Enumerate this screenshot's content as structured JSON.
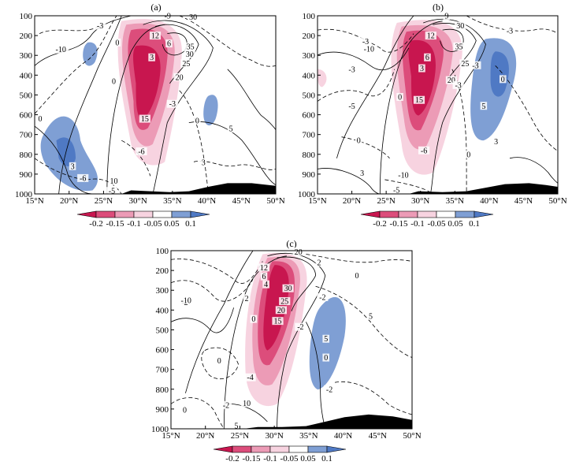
{
  "colors": {
    "shade_neg_strong": "#c8164f",
    "shade_neg_mid": "#dc4d7b",
    "shade_neg_weak": "#ec9bb6",
    "shade_neg_faint": "#f7d3e0",
    "shade_pos": "#7f9fd4",
    "shade_pos_strong": "#4f79c4",
    "terrain": "#000000",
    "contour": "#000000"
  },
  "chart_data": [
    {
      "type": "contour",
      "panel_label": "(a)",
      "xlabel": "",
      "ylabel": "",
      "x_ticks": [
        "15°N",
        "20°N",
        "25°N",
        "30°N",
        "35°N",
        "40°N",
        "45°N",
        "50°N"
      ],
      "y_ticks": [
        "100",
        "200",
        "300",
        "400",
        "500",
        "600",
        "700",
        "800",
        "900",
        "1000"
      ],
      "xlim": [
        15,
        50
      ],
      "ylim": [
        1000,
        100
      ],
      "colorbar": [
        "-0.2",
        "-0.15",
        "-0.1",
        "-0.05",
        "0.05",
        "0.1"
      ],
      "contour_labels": [
        {
          "text": "-3",
          "lat": 24.5,
          "p": 150
        },
        {
          "text": "-10",
          "lat": 18.8,
          "p": 270
        },
        {
          "text": "0",
          "lat": 27.0,
          "p": 235
        },
        {
          "text": "0",
          "lat": 26.5,
          "p": 430
        },
        {
          "text": "-9",
          "lat": 34.3,
          "p": 100
        },
        {
          "text": "30",
          "lat": 38.0,
          "p": 105
        },
        {
          "text": "12",
          "lat": 32.5,
          "p": 200
        },
        {
          "text": "6",
          "lat": 34.5,
          "p": 240
        },
        {
          "text": "35",
          "lat": 37.6,
          "p": 255
        },
        {
          "text": "30",
          "lat": 37.5,
          "p": 293
        },
        {
          "text": "3",
          "lat": 32.0,
          "p": 310
        },
        {
          "text": "25",
          "lat": 37.0,
          "p": 340
        },
        {
          "text": "20",
          "lat": 36.0,
          "p": 410
        },
        {
          "text": "-3",
          "lat": 35.0,
          "p": 545
        },
        {
          "text": "15",
          "lat": 31.0,
          "p": 620
        },
        {
          "text": "0",
          "lat": 38.6,
          "p": 630
        },
        {
          "text": "5",
          "lat": 43.5,
          "p": 670
        },
        {
          "text": "-6",
          "lat": 30.5,
          "p": 785
        },
        {
          "text": "3",
          "lat": 39.5,
          "p": 840
        },
        {
          "text": "0",
          "lat": 15.8,
          "p": 620
        },
        {
          "text": "3",
          "lat": 20.5,
          "p": 860
        },
        {
          "text": "-6",
          "lat": 22.0,
          "p": 920
        },
        {
          "text": "10",
          "lat": 26.5,
          "p": 935
        },
        {
          "text": "-5",
          "lat": 26.2,
          "p": 985
        }
      ]
    },
    {
      "type": "contour",
      "panel_label": "(b)",
      "xlabel": "",
      "ylabel": "",
      "x_ticks": [
        "15°N",
        "20°N",
        "25°N",
        "30°N",
        "35°N",
        "40°N",
        "45°N",
        "50°N"
      ],
      "y_ticks": [
        "100",
        "200",
        "300",
        "400",
        "500",
        "600",
        "700",
        "800",
        "900",
        "1000"
      ],
      "xlim": [
        15,
        50
      ],
      "ylim": [
        1000,
        100
      ],
      "colorbar": [
        "-0.2",
        "-0.15",
        "-0.1",
        "-0.05",
        "0.05",
        "0.1"
      ],
      "contour_labels": [
        {
          "text": "-3",
          "lat": 22.0,
          "p": 230
        },
        {
          "text": "-10",
          "lat": 22.5,
          "p": 268
        },
        {
          "text": "-3",
          "lat": 43.0,
          "p": 175
        },
        {
          "text": "-3",
          "lat": 20.0,
          "p": 370
        },
        {
          "text": "9",
          "lat": 33.8,
          "p": 100
        },
        {
          "text": "12",
          "lat": 31.5,
          "p": 200
        },
        {
          "text": "30",
          "lat": 35.8,
          "p": 150
        },
        {
          "text": "6",
          "lat": 31.0,
          "p": 310
        },
        {
          "text": "35",
          "lat": 35.6,
          "p": 255
        },
        {
          "text": "3",
          "lat": 30.2,
          "p": 365
        },
        {
          "text": "25",
          "lat": 36.5,
          "p": 340
        },
        {
          "text": "20",
          "lat": 34.5,
          "p": 425
        },
        {
          "text": "-3",
          "lat": 38.0,
          "p": 350
        },
        {
          "text": "-3",
          "lat": 35.5,
          "p": 450
        },
        {
          "text": "15",
          "lat": 29.8,
          "p": 525
        },
        {
          "text": "0",
          "lat": 27.0,
          "p": 510
        },
        {
          "text": "0",
          "lat": 42.0,
          "p": 420
        },
        {
          "text": "-5",
          "lat": 20.0,
          "p": 555
        },
        {
          "text": "5",
          "lat": 39.2,
          "p": 555
        },
        {
          "text": "0",
          "lat": 21.0,
          "p": 730
        },
        {
          "text": "3",
          "lat": 41.0,
          "p": 735
        },
        {
          "text": "-6",
          "lat": 30.5,
          "p": 780
        },
        {
          "text": "0",
          "lat": 37.0,
          "p": 800
        },
        {
          "text": "3",
          "lat": 21.5,
          "p": 895
        },
        {
          "text": "-10",
          "lat": 27.5,
          "p": 905
        },
        {
          "text": "-5",
          "lat": 26.5,
          "p": 980
        }
      ]
    },
    {
      "type": "contour",
      "panel_label": "(c)",
      "xlabel": "",
      "ylabel": "",
      "x_ticks": [
        "15°N",
        "20°N",
        "25°N",
        "30°N",
        "35°N",
        "40°N",
        "45°N",
        "50°N"
      ],
      "y_ticks": [
        "100",
        "200",
        "300",
        "400",
        "500",
        "600",
        "700",
        "800",
        "900",
        "1000"
      ],
      "xlim": [
        15,
        50
      ],
      "ylim": [
        1000,
        100
      ],
      "colorbar": [
        "-0.2",
        "-0.15",
        "-0.1",
        "-0.05",
        "0.05",
        "0.1"
      ],
      "contour_labels": [
        {
          "text": "-2",
          "lat": 17.0,
          "p": 360
        },
        {
          "text": "-10",
          "lat": 17.2,
          "p": 350
        },
        {
          "text": "20",
          "lat": 33.5,
          "p": 105
        },
        {
          "text": "2",
          "lat": 36.5,
          "p": 160
        },
        {
          "text": "0",
          "lat": 42.0,
          "p": 225
        },
        {
          "text": "12",
          "lat": 28.5,
          "p": 185
        },
        {
          "text": "6",
          "lat": 28.5,
          "p": 230
        },
        {
          "text": "4",
          "lat": 28.8,
          "p": 270
        },
        {
          "text": "30",
          "lat": 32.0,
          "p": 290
        },
        {
          "text": "2",
          "lat": 26.0,
          "p": 340
        },
        {
          "text": "25",
          "lat": 31.5,
          "p": 355
        },
        {
          "text": "20",
          "lat": 31.0,
          "p": 400
        },
        {
          "text": "-2",
          "lat": 37.0,
          "p": 335
        },
        {
          "text": "0",
          "lat": 27.0,
          "p": 445
        },
        {
          "text": "15",
          "lat": 30.5,
          "p": 455
        },
        {
          "text": "-2",
          "lat": 33.8,
          "p": 485
        },
        {
          "text": "5",
          "lat": 37.5,
          "p": 545
        },
        {
          "text": "5",
          "lat": 44.0,
          "p": 430
        },
        {
          "text": "0",
          "lat": 37.5,
          "p": 640
        },
        {
          "text": "0",
          "lat": 22.0,
          "p": 655
        },
        {
          "text": "-4",
          "lat": 26.5,
          "p": 740
        },
        {
          "text": "-2",
          "lat": 38.0,
          "p": 800
        },
        {
          "text": "0",
          "lat": 17.0,
          "p": 905
        },
        {
          "text": "-2",
          "lat": 23.0,
          "p": 880
        },
        {
          "text": "10",
          "lat": 26.0,
          "p": 870
        },
        {
          "text": "5",
          "lat": 24.5,
          "p": 985
        }
      ]
    }
  ]
}
